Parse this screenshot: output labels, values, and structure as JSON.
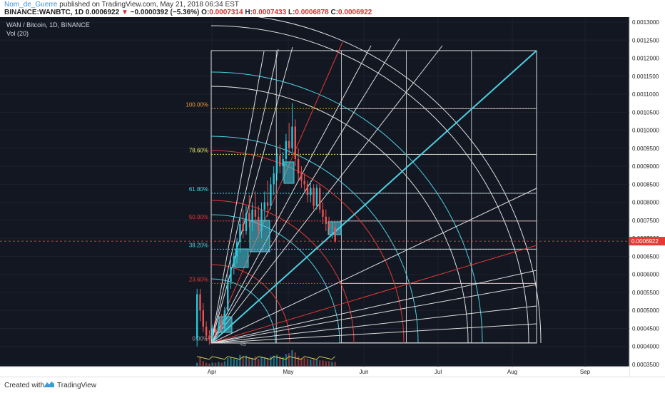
{
  "header": {
    "author": "Nom_de_Guerre",
    "published": "published on TradingView.com, May 21, 2018 06:34 EST",
    "symbol_line": "BINANCE:WANBTC, 1D",
    "last_price": "0.0006922",
    "down_arrow": "▼",
    "change": "−0.0000392 (−5.36%)",
    "o_label": "O:",
    "o_value": "0.0007314",
    "h_label": "H:",
    "h_value": "0.0007433",
    "l_label": "L:",
    "l_value": "0.0006878",
    "c_label": "C:",
    "c_value": "0.0006922"
  },
  "legend": {
    "title": "WAN / Bitcoin, 1D, BINANCE",
    "indicator": "Vol (20)"
  },
  "footer": {
    "created_with": "Created with",
    "brand": "TradingView"
  },
  "chart_data": {
    "type": "candlestick",
    "yaxis_ticks": [
      "0.0013000",
      "0.0012500",
      "0.0012000",
      "0.0011500",
      "0.0011000",
      "0.0010500",
      "0.0010000",
      "0.0009500",
      "0.0009000",
      "0.0008500",
      "0.0008000",
      "0.0007500",
      "0.0007000",
      "0.0006500",
      "0.0006000",
      "0.0005500",
      "0.0005000",
      "0.0004500",
      "0.0004000",
      "0.0003500"
    ],
    "ylim": [
      0.00035,
      0.0013
    ],
    "current_price_label": "0.0006922",
    "xaxis_ticks": [
      "Apr",
      "May",
      "Jun",
      "Jul",
      "Aug",
      "Sep"
    ],
    "fib_levels": [
      {
        "label": "100.00%",
        "value": 0.00106,
        "color": "#e8963c"
      },
      {
        "label": "78.60%",
        "value": 0.000933,
        "color": "#e6e65a"
      },
      {
        "label": "61.80%",
        "value": 0.000825,
        "color": "#4dd0e1"
      },
      {
        "label": "50.00%",
        "value": 0.000748,
        "color": "#e53935"
      },
      {
        "label": "38.20%",
        "value": 0.00067,
        "color": "#4dd0e1"
      },
      {
        "label": "23.60%",
        "value": 0.000575,
        "color": "#e53935"
      },
      {
        "label": "0.00%",
        "value": 0.00041,
        "color": "#9e9e9e"
      }
    ],
    "gann_angle_label": "45°",
    "candles": [
      {
        "o": 0.00042,
        "h": 0.00056,
        "l": 0.0004,
        "c": 0.000545
      },
      {
        "o": 0.000545,
        "h": 0.00056,
        "l": 0.00047,
        "c": 0.0005
      },
      {
        "o": 0.0005,
        "h": 0.00052,
        "l": 0.00044,
        "c": 0.000455
      },
      {
        "o": 0.000455,
        "h": 0.00047,
        "l": 0.000415,
        "c": 0.00043
      },
      {
        "o": 0.00043,
        "h": 0.000445,
        "l": 0.000405,
        "c": 0.00042
      },
      {
        "o": 0.00042,
        "h": 0.00046,
        "l": 0.000415,
        "c": 0.00045
      },
      {
        "o": 0.00045,
        "h": 0.000475,
        "l": 0.00043,
        "c": 0.00044
      },
      {
        "o": 0.00044,
        "h": 0.00047,
        "l": 0.000435,
        "c": 0.00046
      },
      {
        "o": 0.00046,
        "h": 0.00049,
        "l": 0.00044,
        "c": 0.00045
      },
      {
        "o": 0.00045,
        "h": 0.00051,
        "l": 0.000445,
        "c": 0.0005
      },
      {
        "o": 0.0005,
        "h": 0.0006,
        "l": 0.00049,
        "c": 0.00058
      },
      {
        "o": 0.00058,
        "h": 0.00064,
        "l": 0.00056,
        "c": 0.00062
      },
      {
        "o": 0.00062,
        "h": 0.00066,
        "l": 0.0006,
        "c": 0.00065
      },
      {
        "o": 0.00065,
        "h": 0.0007,
        "l": 0.00063,
        "c": 0.00069
      },
      {
        "o": 0.00069,
        "h": 0.00076,
        "l": 0.00066,
        "c": 0.00074
      },
      {
        "o": 0.00074,
        "h": 0.00078,
        "l": 0.0007,
        "c": 0.00072
      },
      {
        "o": 0.00072,
        "h": 0.00079,
        "l": 0.00071,
        "c": 0.00077
      },
      {
        "o": 0.00077,
        "h": 0.00082,
        "l": 0.00073,
        "c": 0.00075
      },
      {
        "o": 0.00075,
        "h": 0.0008,
        "l": 0.00072,
        "c": 0.00078
      },
      {
        "o": 0.00078,
        "h": 0.00083,
        "l": 0.00074,
        "c": 0.00076
      },
      {
        "o": 0.00076,
        "h": 0.00079,
        "l": 0.0007,
        "c": 0.00072
      },
      {
        "o": 0.00072,
        "h": 0.0008,
        "l": 0.0007,
        "c": 0.00078
      },
      {
        "o": 0.00078,
        "h": 0.00083,
        "l": 0.00075,
        "c": 0.0008
      },
      {
        "o": 0.0008,
        "h": 0.00086,
        "l": 0.00076,
        "c": 0.00079
      },
      {
        "o": 0.00079,
        "h": 0.00087,
        "l": 0.00078,
        "c": 0.00085
      },
      {
        "o": 0.00085,
        "h": 0.0009,
        "l": 0.00082,
        "c": 0.00088
      },
      {
        "o": 0.00088,
        "h": 0.00095,
        "l": 0.00086,
        "c": 0.00093
      },
      {
        "o": 0.00093,
        "h": 0.00096,
        "l": 0.00088,
        "c": 0.0009
      },
      {
        "o": 0.0009,
        "h": 0.00094,
        "l": 0.00086,
        "c": 0.00092
      },
      {
        "o": 0.00092,
        "h": 0.00099,
        "l": 0.0009,
        "c": 0.00097
      },
      {
        "o": 0.00097,
        "h": 0.00102,
        "l": 0.00093,
        "c": 0.00095
      },
      {
        "o": 0.00095,
        "h": 0.001075,
        "l": 0.00094,
        "c": 0.00101
      },
      {
        "o": 0.00101,
        "h": 0.00103,
        "l": 0.0009,
        "c": 0.00092
      },
      {
        "o": 0.00092,
        "h": 0.00095,
        "l": 0.00086,
        "c": 0.00088
      },
      {
        "o": 0.00088,
        "h": 0.0009,
        "l": 0.00084,
        "c": 0.00086
      },
      {
        "o": 0.00086,
        "h": 0.00088,
        "l": 0.00083,
        "c": 0.00085
      },
      {
        "o": 0.00085,
        "h": 0.00086,
        "l": 0.0008,
        "c": 0.00082
      },
      {
        "o": 0.00082,
        "h": 0.00086,
        "l": 0.0008,
        "c": 0.00084
      },
      {
        "o": 0.00084,
        "h": 0.00085,
        "l": 0.00078,
        "c": 0.00079
      },
      {
        "o": 0.00079,
        "h": 0.00085,
        "l": 0.00078,
        "c": 0.00084
      },
      {
        "o": 0.00084,
        "h": 0.00085,
        "l": 0.00077,
        "c": 0.00078
      },
      {
        "o": 0.00078,
        "h": 0.0008,
        "l": 0.00074,
        "c": 0.00076
      },
      {
        "o": 0.00076,
        "h": 0.00078,
        "l": 0.00072,
        "c": 0.00074
      },
      {
        "o": 0.00074,
        "h": 0.00076,
        "l": 0.00071,
        "c": 0.00073
      },
      {
        "o": 0.00073,
        "h": 0.000745,
        "l": 0.0007,
        "c": 0.000731
      },
      {
        "o": 0.0007314,
        "h": 0.0007433,
        "l": 0.0006878,
        "c": 0.0006922
      }
    ],
    "volume": [
      0.2,
      0.6,
      0.3,
      0.2,
      0.15,
      0.2,
      0.2,
      0.25,
      0.2,
      0.3,
      0.5,
      0.55,
      0.45,
      0.4,
      0.7,
      0.6,
      0.65,
      0.55,
      0.5,
      0.6,
      0.45,
      0.6,
      0.55,
      0.5,
      0.6,
      0.65,
      0.7,
      0.6,
      0.55,
      0.75,
      0.8,
      1.0,
      0.85,
      0.6,
      0.5,
      0.5,
      0.45,
      0.4,
      0.45,
      0.4,
      0.35,
      0.35,
      0.3,
      0.3,
      0.25,
      0.25
    ],
    "colors": {
      "up": "#26c6da",
      "down": "#ef5350",
      "grid": "#2a2e39",
      "bg": "#131722",
      "axis_text": "#222222"
    }
  }
}
